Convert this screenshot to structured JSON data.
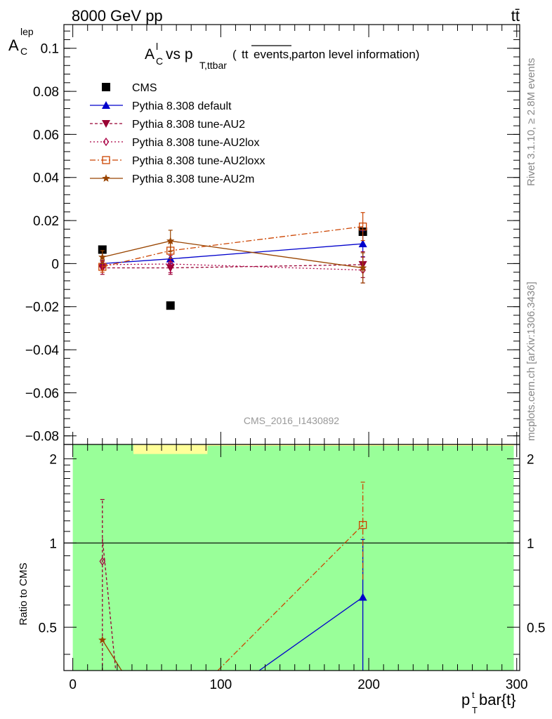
{
  "header": {
    "left": "8000 GeV pp",
    "right": "tt̄"
  },
  "side": {
    "rivet": "Rivet 3.1.10, ≥ 2.8M events",
    "mcplots": "mcplots.cern.ch [arXiv:1306.3436]"
  },
  "main_title": {
    "a": "A",
    "a_sup": "l",
    "a_sub": "C",
    "vs": " vs p",
    "p_sub": "T,ttbar",
    "paren_open": " (",
    "tt": "tt",
    "events": "events,",
    "tail": " parton level information)"
  },
  "analysis_id": "CMS_2016_I1430892",
  "chart_data": [
    {
      "type": "scatter",
      "ylabel": "A",
      "ylabel_sup": "lep",
      "ylabel_sub": "C",
      "xlim": [
        -6,
        302
      ],
      "ylim": [
        -0.084,
        0.111
      ],
      "yticks": [
        -0.08,
        -0.06,
        -0.04,
        -0.02,
        0,
        0.02,
        0.04,
        0.06,
        0.08,
        0.1
      ],
      "ytick_labels": [
        "−0.08",
        "−0.06",
        "−0.04",
        "−0.02",
        "0",
        "0.02",
        "0.04",
        "0.06",
        "0.08",
        "0.1"
      ],
      "legend_position": "top-left",
      "series": [
        {
          "name": "CMS",
          "color": "#000000",
          "marker": "square",
          "line": "none",
          "x": [
            20,
            66,
            196
          ],
          "y": [
            0.0065,
            -0.0195,
            0.0148
          ]
        },
        {
          "name": "Pythia 8.308 default",
          "color": "#0000cc",
          "marker": "triangle-up",
          "line": "solid",
          "x": [
            20,
            66,
            196
          ],
          "y": [
            0.0,
            0.0022,
            0.0092
          ],
          "err": [
            0.0012,
            0.0022,
            0.006
          ]
        },
        {
          "name": "Pythia 8.308 tune-AU2",
          "color": "#990033",
          "marker": "triangle-down",
          "line": "dashed",
          "x": [
            20,
            66,
            196
          ],
          "y": [
            -0.002,
            -0.002,
            -0.0005
          ],
          "err": [
            0.003,
            0.003,
            0.006
          ]
        },
        {
          "name": "Pythia 8.308 tune-AU2lox",
          "color": "#aa0044",
          "marker": "diamond-open",
          "line": "dotted",
          "x": [
            20,
            66,
            196
          ],
          "y": [
            -0.0005,
            -0.0002,
            -0.003
          ],
          "err": [
            0.002,
            0.004,
            0.006
          ]
        },
        {
          "name": "Pythia 8.308 tune-AU2loxx",
          "color": "#cc4400",
          "marker": "square-open",
          "line": "dashdot",
          "x": [
            20,
            66,
            196
          ],
          "y": [
            -0.0015,
            0.006,
            0.0172
          ],
          "err": [
            0.0025,
            0.0035,
            0.0065
          ]
        },
        {
          "name": "Pythia 8.308 tune-AU2m",
          "color": "#994400",
          "marker": "star",
          "line": "solid",
          "x": [
            20,
            66,
            196
          ],
          "y": [
            0.003,
            0.0105,
            -0.002
          ],
          "err": [
            0.003,
            0.005,
            0.007
          ]
        }
      ]
    },
    {
      "type": "line",
      "ylabel": "Ratio to CMS",
      "xlabel": "p",
      "xlabel_sup": "t",
      "xlabel_sub": "T",
      "xlabel_tail": "bar{t}",
      "xlim": [
        -6,
        302
      ],
      "ylim": [
        0.35,
        2.25
      ],
      "xticks": [
        0,
        100,
        200,
        300
      ],
      "xtick_labels": [
        "0",
        "100",
        "200",
        "300"
      ],
      "yticks": [
        0.5,
        1,
        2
      ],
      "ytick_labels": [
        "0.5",
        "1",
        "2"
      ],
      "band_green": {
        "color": "#99ff99",
        "x": [
          0,
          298
        ],
        "y": [
          0.35,
          2.25
        ]
      },
      "band_yellow": [
        {
          "color": "#ffff99",
          "x": [
            41,
            91
          ],
          "y": [
            2.08,
            2.25
          ]
        },
        {
          "color": "#ffff99",
          "x": [
            91,
            298
          ],
          "y": [
            2.24,
            2.25
          ]
        }
      ],
      "reference_line": 1,
      "series": [
        {
          "name": "Pythia 8.308 default",
          "color": "#0000cc",
          "line": "solid",
          "marker": "triangle-up",
          "x": [
            126,
            196
          ],
          "y": [
            0.35,
            0.64
          ],
          "marker_index": [
            1
          ],
          "err_point": [
            196,
            0.35,
            1.03
          ]
        },
        {
          "name": "Pythia 8.308 tune-AU2",
          "color": "#990033",
          "line": "dashed",
          "marker": "none",
          "x": [
            20,
            29
          ],
          "y": [
            1.04,
            0.35
          ],
          "err_point": [
            20,
            0.35,
            1.43
          ]
        },
        {
          "name": "Pythia 8.308 tune-AU2lox",
          "color": "#aa0044",
          "line": "dotted",
          "marker": "diamond-open",
          "x": [
            20
          ],
          "y": [
            0.86
          ],
          "marker_index": [
            0
          ]
        },
        {
          "name": "Pythia 8.308 tune-AU2loxx",
          "color": "#cc4400",
          "line": "dashdot",
          "marker": "square-open",
          "x": [
            98,
            196
          ],
          "y": [
            0.35,
            1.16
          ],
          "marker_index": [
            1
          ],
          "err_point": [
            196,
            0.74,
            1.65
          ]
        },
        {
          "name": "Pythia 8.308 tune-AU2m",
          "color": "#994400",
          "line": "solid",
          "marker": "star",
          "x": [
            20,
            33
          ],
          "y": [
            0.45,
            0.35
          ],
          "marker_index": [
            0
          ]
        }
      ]
    }
  ]
}
